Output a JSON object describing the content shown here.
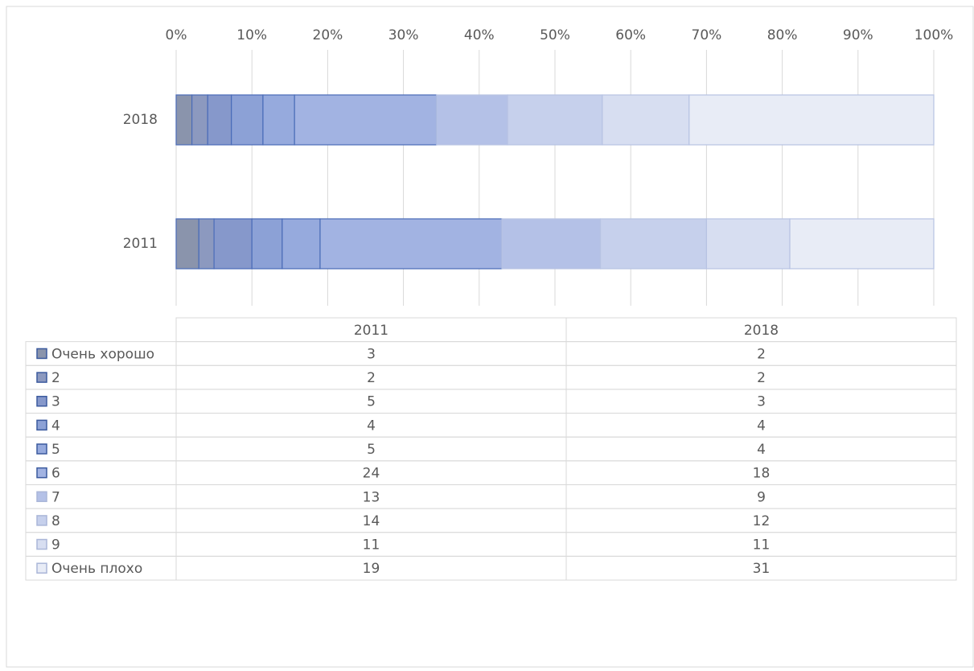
{
  "chart_data": {
    "type": "bar",
    "orientation": "horizontal",
    "stacked": "percent",
    "categories": [
      "2011",
      "2018"
    ],
    "series": [
      {
        "name": "Очень хорошо",
        "color": "#8a94ac",
        "values": [
          3,
          2
        ]
      },
      {
        "name": "2",
        "color": "#8c99bf",
        "values": [
          2,
          2
        ]
      },
      {
        "name": "3",
        "color": "#8698cb",
        "values": [
          5,
          3
        ]
      },
      {
        "name": "4",
        "color": "#8ca1d6",
        "values": [
          4,
          4
        ]
      },
      {
        "name": "5",
        "color": "#96aadd",
        "values": [
          5,
          4
        ]
      },
      {
        "name": "6",
        "color": "#a2b3e2",
        "values": [
          24,
          18
        ]
      },
      {
        "name": "7",
        "color": "#b4c1e7",
        "values": [
          13,
          9
        ]
      },
      {
        "name": "8",
        "color": "#c6d0ec",
        "values": [
          14,
          12
        ]
      },
      {
        "name": "9",
        "color": "#d7def1",
        "values": [
          11,
          11
        ]
      },
      {
        "name": "Очень плохо",
        "color": "#e8ecf6",
        "values": [
          19,
          31
        ]
      }
    ],
    "xlim": [
      0,
      100
    ],
    "xticks": [
      {
        "value": 0,
        "label": "0%"
      },
      {
        "value": 10,
        "label": "10%"
      },
      {
        "value": 20,
        "label": "20%"
      },
      {
        "value": 30,
        "label": "30%"
      },
      {
        "value": 40,
        "label": "40%"
      },
      {
        "value": 50,
        "label": "50%"
      },
      {
        "value": 60,
        "label": "60%"
      },
      {
        "value": 70,
        "label": "70%"
      },
      {
        "value": 80,
        "label": "80%"
      },
      {
        "value": 90,
        "label": "90%"
      },
      {
        "value": 100,
        "label": "100%"
      }
    ],
    "grid": true,
    "data_table": true
  }
}
